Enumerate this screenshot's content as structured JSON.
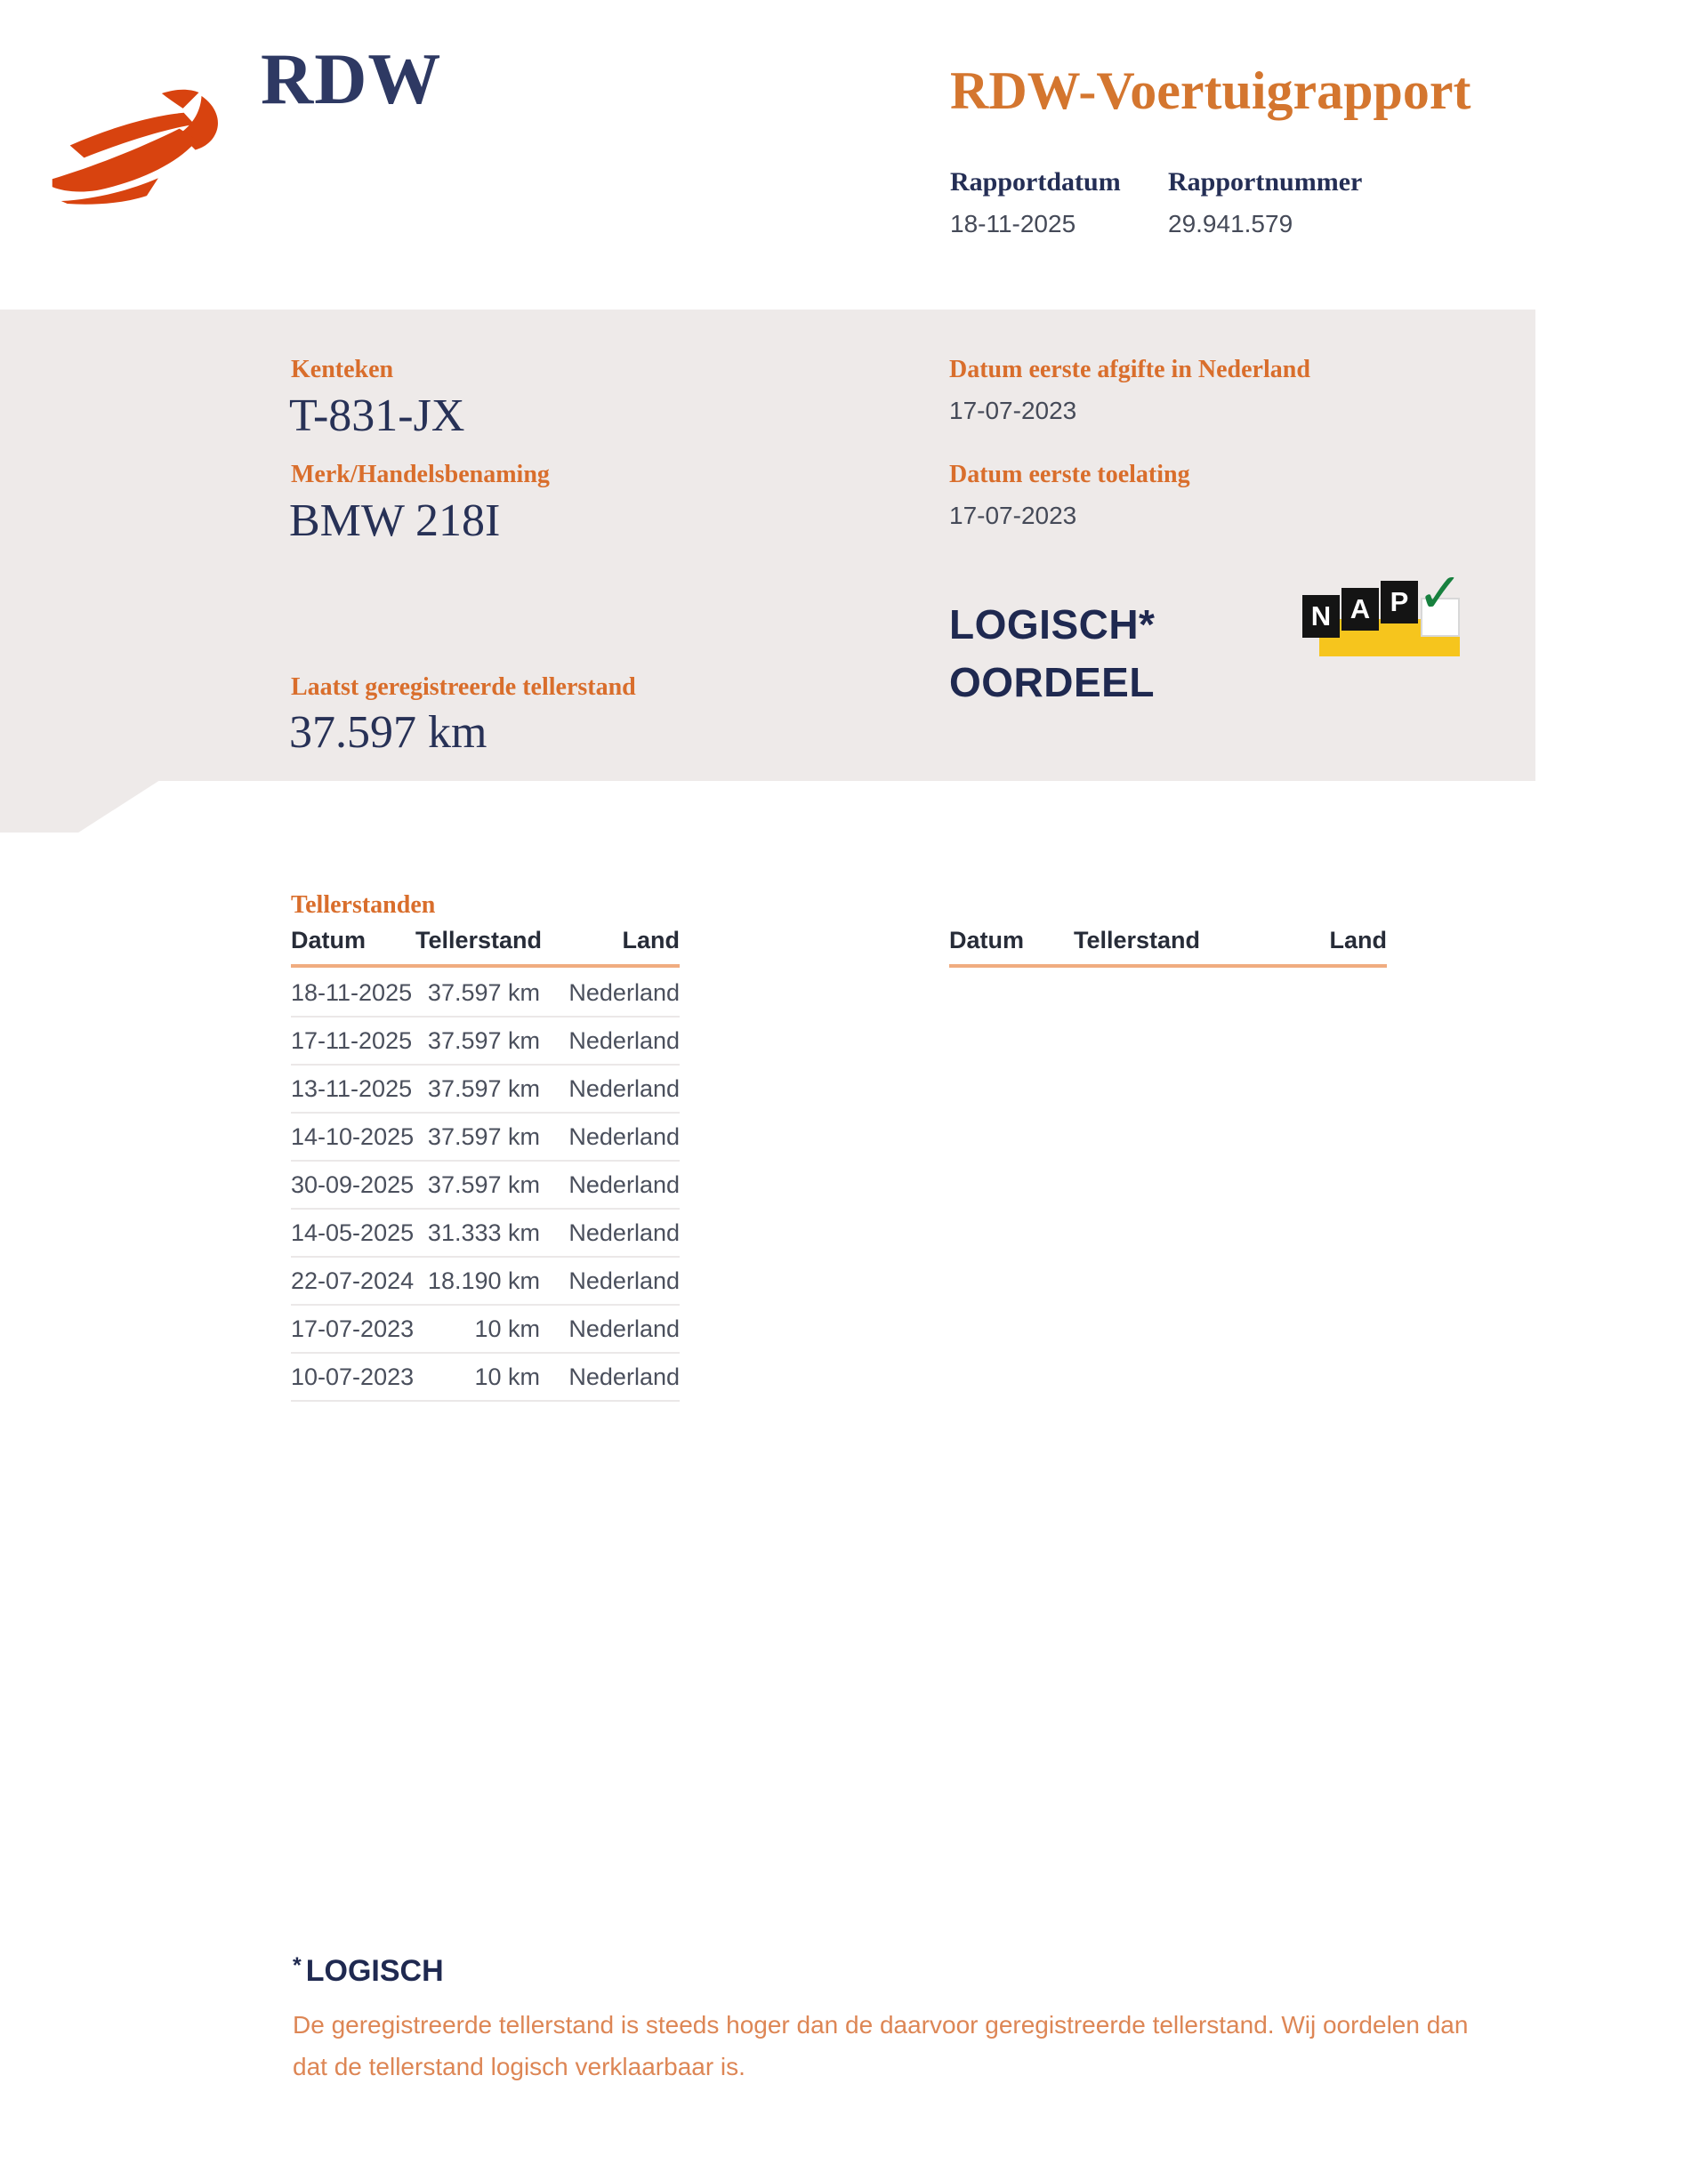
{
  "header": {
    "brand": "RDW",
    "title": "RDW-Voertuigrapport",
    "report_date": {
      "label": "Rapportdatum",
      "value": "18-11-2025"
    },
    "report_number": {
      "label": "Rapportnummer",
      "value": "29.941.579"
    }
  },
  "vehicle_panel": {
    "kenteken": {
      "label": "Kenteken",
      "value": "T-831-JX"
    },
    "merk": {
      "label": "Merk/Handelsbenaming",
      "value": "BMW 218I"
    },
    "eerste_afgifte": {
      "label": "Datum eerste afgifte in Nederland",
      "value": "17-07-2023"
    },
    "eerste_toelating": {
      "label": "Datum eerste toelating",
      "value": "17-07-2023"
    },
    "laatste_tellerstand": {
      "label": "Laatst geregistreerde tellerstand",
      "value": "37.597 km"
    },
    "oordeel": {
      "line1": "LOGISCH*",
      "line2": "OORDEEL"
    },
    "nap_logo": {
      "letters": [
        "N",
        "A",
        "P"
      ],
      "check_glyph": "✓"
    }
  },
  "tellerstanden": {
    "heading": "Tellerstanden",
    "columns": [
      "Datum",
      "Tellerstand",
      "Land"
    ],
    "rows": [
      [
        "18-11-2025",
        "37.597 km",
        "Nederland"
      ],
      [
        "17-11-2025",
        "37.597 km",
        "Nederland"
      ],
      [
        "13-11-2025",
        "37.597 km",
        "Nederland"
      ],
      [
        "14-10-2025",
        "37.597 km",
        "Nederland"
      ],
      [
        "30-09-2025",
        "37.597 km",
        "Nederland"
      ],
      [
        "14-05-2025",
        "31.333 km",
        "Nederland"
      ],
      [
        "22-07-2024",
        "18.190 km",
        "Nederland"
      ],
      [
        "17-07-2023",
        "10 km",
        "Nederland"
      ],
      [
        "10-07-2023",
        "10 km",
        "Nederland"
      ]
    ]
  },
  "footnote": {
    "asterisk": "*",
    "heading": "LOGISCH",
    "lines": [
      "De geregistreerde tellerstand is steeds hoger dan de daarvoor geregistreerde tellerstand. Wij oordelen dan",
      "dat de tellerstand logisch verklaarbaar is."
    ]
  },
  "colors": {
    "logo_red": "#d8430f",
    "title_orange": "#d4762f",
    "label_orange": "#d96e2c",
    "footnote_orange": "#dd8655",
    "navy": "#273156",
    "panel_bg": "#eeeae9",
    "table_underline": "#f0ac80",
    "nap_yellow": "#f6c51d",
    "nap_green": "#17803e"
  }
}
